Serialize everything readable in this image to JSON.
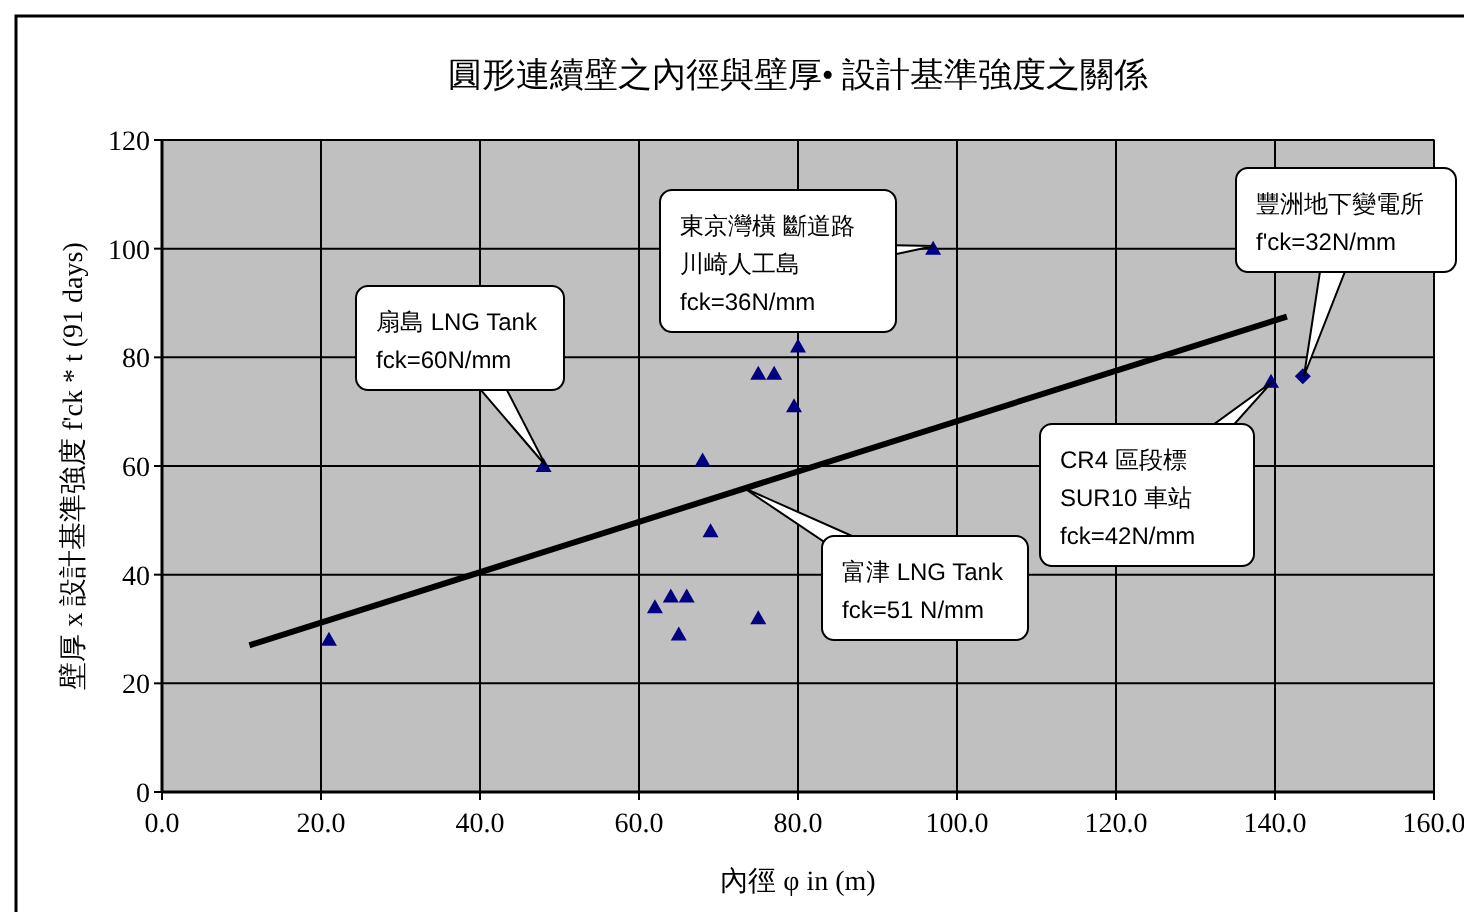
{
  "chart_data": {
    "type": "scatter",
    "title": "圓形連續壁之內徑與壁厚• 設計基準強度之關係",
    "xlabel": "內徑 φ in (m)",
    "ylabel": "壁厚 x 設計基準強度 f'ck * t (91 days)",
    "xlim": [
      0,
      160
    ],
    "ylim": [
      0,
      120
    ],
    "xticks": [
      {
        "value": 0,
        "label": "0.0"
      },
      {
        "value": 20,
        "label": "20.0"
      },
      {
        "value": 40,
        "label": "40.0"
      },
      {
        "value": 60,
        "label": "60.0"
      },
      {
        "value": 80,
        "label": "80.0"
      },
      {
        "value": 100,
        "label": "100.0"
      },
      {
        "value": 120,
        "label": "120.0"
      },
      {
        "value": 140,
        "label": "140.0"
      },
      {
        "value": 160,
        "label": "160.0"
      }
    ],
    "yticks": [
      0,
      20,
      40,
      60,
      80,
      100,
      120
    ],
    "grid": true,
    "series": [
      {
        "type": "scatter",
        "marker": "triangle",
        "color": "#000080",
        "x": [
          21,
          48,
          68,
          69,
          62,
          64,
          66,
          65,
          75,
          75,
          77,
          80,
          79.5,
          97,
          139.5
        ],
        "values": [
          28,
          60,
          61,
          48,
          34,
          36,
          36,
          29,
          32,
          77,
          77,
          82,
          71,
          100,
          75.5
        ]
      },
      {
        "type": "scatter",
        "marker": "diamond",
        "color": "#000080",
        "x": [
          143.5
        ],
        "values": [
          76.5
        ]
      },
      {
        "type": "line",
        "marker": "none",
        "line_style": "solid",
        "color": "#000000",
        "x": [
          11,
          141.5
        ],
        "values": [
          27,
          87.5
        ]
      }
    ],
    "annotations": [
      "扇島 LNG Tank",
      "fck=60N/mm",
      "東京灣橫 斷道路",
      "川崎人工島",
      "fck=36N/mm",
      "富津 LNG Tank",
      "fck=51 N/mm",
      "CR4 區段標",
      "SUR10 車站",
      "fck=42N/mm",
      "豐洲地下變電所",
      "f'ck=32N/mm"
    ]
  }
}
